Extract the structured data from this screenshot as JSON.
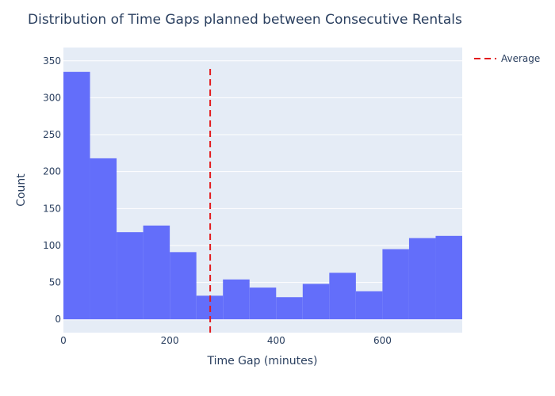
{
  "chart_data": {
    "type": "bar",
    "title": "Distribution of Time Gaps planned between Consecutive Rentals",
    "xlabel": "Time Gap (minutes)",
    "ylabel": "Count",
    "bin_width": 50,
    "bins": [
      {
        "start": 0,
        "end": 50,
        "count": 335
      },
      {
        "start": 50,
        "end": 100,
        "count": 218
      },
      {
        "start": 100,
        "end": 150,
        "count": 118
      },
      {
        "start": 150,
        "end": 200,
        "count": 127
      },
      {
        "start": 200,
        "end": 250,
        "count": 91
      },
      {
        "start": 250,
        "end": 300,
        "count": 32
      },
      {
        "start": 300,
        "end": 350,
        "count": 54
      },
      {
        "start": 350,
        "end": 400,
        "count": 43
      },
      {
        "start": 400,
        "end": 450,
        "count": 30
      },
      {
        "start": 450,
        "end": 500,
        "count": 48
      },
      {
        "start": 500,
        "end": 550,
        "count": 63
      },
      {
        "start": 550,
        "end": 600,
        "count": 38
      },
      {
        "start": 600,
        "end": 650,
        "count": 95
      },
      {
        "start": 650,
        "end": 700,
        "count": 110
      },
      {
        "start": 700,
        "end": 750,
        "count": 113
      }
    ],
    "xlim": [
      0,
      750
    ],
    "ylim": [
      -18,
      368
    ],
    "xticks": [
      0,
      200,
      400,
      600
    ],
    "yticks": [
      0,
      50,
      100,
      150,
      200,
      250,
      300,
      350
    ],
    "grid": true,
    "bar_color": "#636efa",
    "plot_bg": "#e5ecf6",
    "average_line": {
      "name": "Average",
      "x": 276,
      "y_range": [
        -18,
        343
      ],
      "color": "#e31a1c",
      "dash": "dash"
    },
    "legend": {
      "placement": "top-right",
      "entries": [
        "Average"
      ]
    }
  }
}
